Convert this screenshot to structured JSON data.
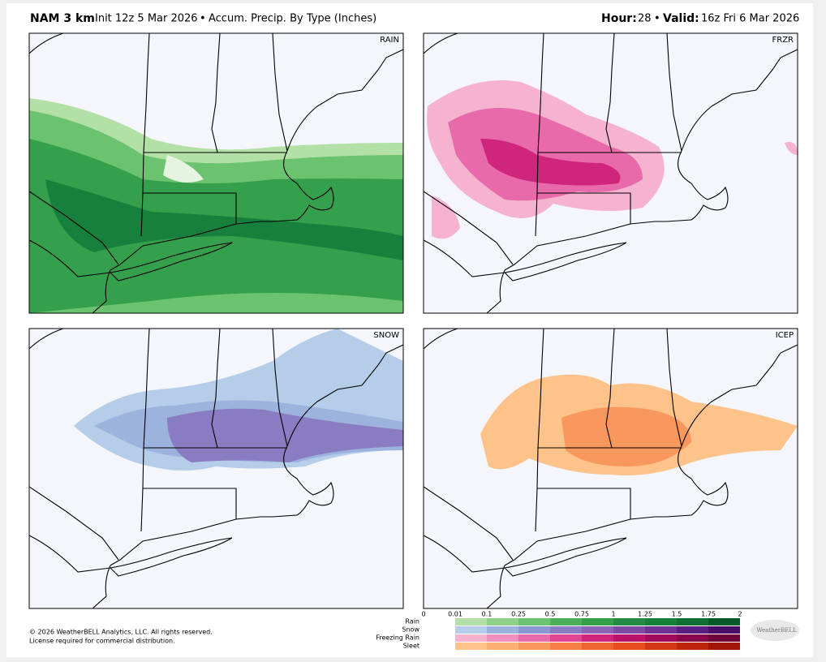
{
  "header": {
    "model": "NAM 3 km",
    "init": "Init 12z 5 Mar 2026",
    "separator": "•",
    "product": "Accum. Precip. By Type (Inches)",
    "hour_label": "Hour:",
    "hour": "28",
    "valid_label": "Valid:",
    "valid": "16z Fri 6 Mar 2026"
  },
  "panels": [
    {
      "label": "RAIN"
    },
    {
      "label": "FRZR"
    },
    {
      "label": "SNOW"
    },
    {
      "label": "ICEP"
    }
  ],
  "legend": {
    "ticks": [
      "0",
      "0.01",
      "0.1",
      "0.25",
      "0.5",
      "0.75",
      "1",
      "1.25",
      "1.5",
      "1.75",
      "2"
    ],
    "rows": [
      {
        "label": "Rain",
        "colors": [
          "#b3e0a6",
          "#8fd18a",
          "#6cc36f",
          "#4cb05a",
          "#35a04b",
          "#238b45",
          "#17803c",
          "#0d6f33",
          "#005a28"
        ]
      },
      {
        "label": "Snow",
        "colors": [
          "#b5cde8",
          "#9bb3dd",
          "#8c96d0",
          "#8a7cc2",
          "#8a64b5",
          "#7e4aa4",
          "#6e3394",
          "#5c1e80",
          "#4a0d68"
        ]
      },
      {
        "label": "Freezing Rain",
        "colors": [
          "#f5b3cf",
          "#ee8fbe",
          "#e86aaa",
          "#e04493",
          "#d0257c",
          "#b81368",
          "#a00a58",
          "#880549",
          "#70023a"
        ]
      },
      {
        "label": "Sleet",
        "colors": [
          "#fdc38a",
          "#fbb073",
          "#f8985d",
          "#f47e46",
          "#ef6331",
          "#e64d21",
          "#d43716",
          "#bd240c",
          "#a11407"
        ]
      }
    ]
  },
  "footer": {
    "copyright": "© 2026 WeatherBELL Analytics, LLC. All rights reserved.",
    "license": "License required for commercial distribution."
  },
  "logo": "WeatherBELL"
}
